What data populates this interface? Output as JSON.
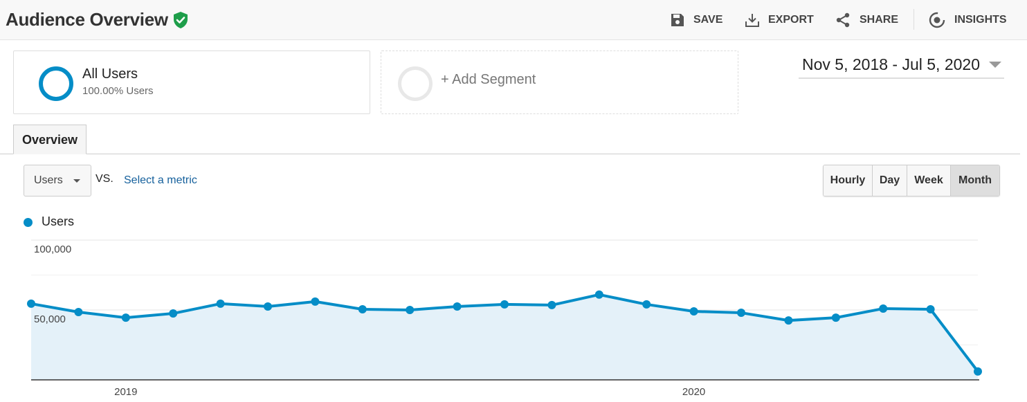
{
  "header": {
    "title": "Audience Overview",
    "actions": [
      {
        "label": "SAVE",
        "icon": "save-icon"
      },
      {
        "label": "EXPORT",
        "icon": "download-icon"
      },
      {
        "label": "SHARE",
        "icon": "share-icon"
      },
      {
        "label": "INSIGHTS",
        "icon": "insights-icon"
      }
    ]
  },
  "segments": {
    "all_users": {
      "name": "All Users",
      "percent": "100.00% Users"
    },
    "add_segment": {
      "label": "+ Add Segment"
    }
  },
  "date_range": "Nov 5, 2018 - Jul 5, 2020",
  "tabs": [
    {
      "label": "Overview",
      "active": true
    }
  ],
  "metric": {
    "selected": "Users",
    "vs": "VS.",
    "select_label": "Select a metric"
  },
  "granularity": [
    {
      "label": "Hourly",
      "active": false
    },
    {
      "label": "Day",
      "active": false
    },
    {
      "label": "Week",
      "active": false
    },
    {
      "label": "Month",
      "active": true
    }
  ],
  "colors": {
    "series": "#058dc7",
    "fill": "#e4f1f9",
    "accent_green": "#1e9e4a"
  },
  "chart_data": {
    "type": "area",
    "series": [
      {
        "name": "Users",
        "values": [
          54500,
          48500,
          44500,
          47500,
          54500,
          52500,
          56000,
          50500,
          50000,
          52500,
          54000,
          53500,
          61000,
          54000,
          49000,
          48000,
          42500,
          44500,
          51000,
          50500,
          6000
        ]
      }
    ],
    "y_ticks": [
      "100,000",
      "50,000"
    ],
    "y_tick_values": [
      100000,
      50000
    ],
    "ylim": [
      0,
      100000
    ],
    "x_ticks": [
      {
        "label": "2019",
        "index": 2
      },
      {
        "label": "2020",
        "index": 14
      }
    ],
    "grid": true
  }
}
